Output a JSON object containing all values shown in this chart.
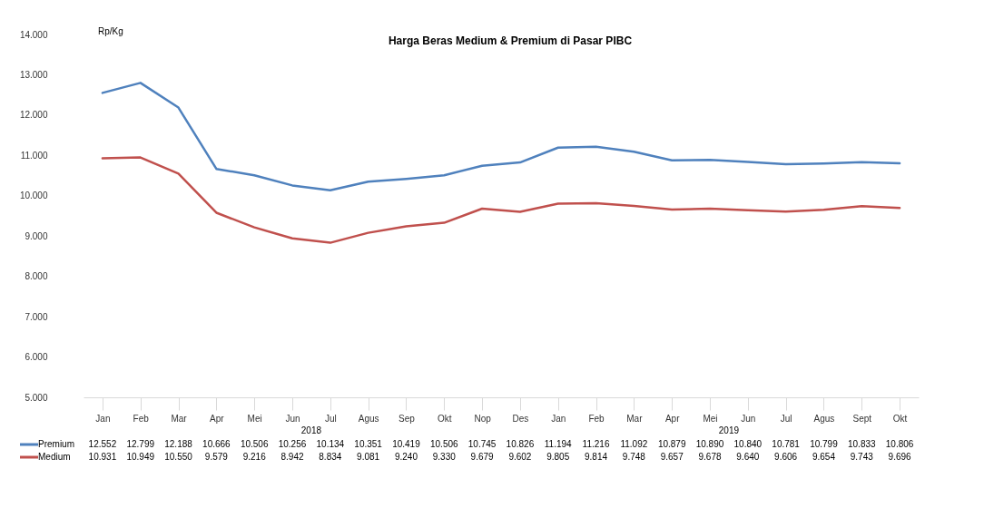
{
  "chart_data": {
    "type": "line",
    "title": "Harga Beras Medium & Premium di Pasar PIBC",
    "ylabel": "Rp/Kg",
    "categories": [
      "Jan",
      "Feb",
      "Mar",
      "Apr",
      "Mei",
      "Jun",
      "Jul",
      "Agus",
      "Sep",
      "Okt",
      "Nop",
      "Des",
      "Jan",
      "Feb",
      "Mar",
      "Apr",
      "Mei",
      "Jun",
      "Jul",
      "Agus",
      "Sept",
      "Okt"
    ],
    "series": [
      {
        "name": "Premium",
        "color": "#4f81bd",
        "values": [
          12552,
          12799,
          12188,
          10666,
          10506,
          10256,
          10134,
          10351,
          10419,
          10506,
          10745,
          10826,
          11194,
          11216,
          11092,
          10879,
          10890,
          10840,
          10781,
          10799,
          10833,
          10806
        ],
        "value_labels": [
          "12.552",
          "12.799",
          "12.188",
          "10.666",
          "10.506",
          "10.256",
          "10.134",
          "10.351",
          "10.419",
          "10.506",
          "10.745",
          "10.826",
          "11.194",
          "11.216",
          "11.092",
          "10.879",
          "10.890",
          "10.840",
          "10.781",
          "10.799",
          "10.833",
          "10.806"
        ]
      },
      {
        "name": "Medium",
        "color": "#c0504d",
        "values": [
          10931,
          10949,
          10550,
          9579,
          9216,
          8942,
          8834,
          9081,
          9240,
          9330,
          9679,
          9602,
          9805,
          9814,
          9748,
          9657,
          9678,
          9640,
          9606,
          9654,
          9743,
          9696
        ],
        "value_labels": [
          "10.931",
          "10.949",
          "10.550",
          "9.579",
          "9.216",
          "8.942",
          "8.834",
          "9.081",
          "9.240",
          "9.330",
          "9.679",
          "9.602",
          "9.805",
          "9.814",
          "9.748",
          "9.657",
          "9.678",
          "9.640",
          "9.606",
          "9.654",
          "9.743",
          "9.696"
        ]
      }
    ],
    "ylim": [
      5000,
      14000
    ],
    "yticks": [
      {
        "value": 5000,
        "label": "5.000"
      },
      {
        "value": 6000,
        "label": "6.000"
      },
      {
        "value": 7000,
        "label": "7.000"
      },
      {
        "value": 8000,
        "label": "8.000"
      },
      {
        "value": 9000,
        "label": "9.000"
      },
      {
        "value": 10000,
        "label": "10.000"
      },
      {
        "value": 11000,
        "label": "11.000"
      },
      {
        "value": 12000,
        "label": "12.000"
      },
      {
        "value": 13000,
        "label": "13.000"
      },
      {
        "value": 14000,
        "label": "14.000"
      }
    ],
    "annotations": [
      "2018",
      "2019"
    ],
    "grid": false,
    "legend": "bottom",
    "line_style": "solid"
  }
}
